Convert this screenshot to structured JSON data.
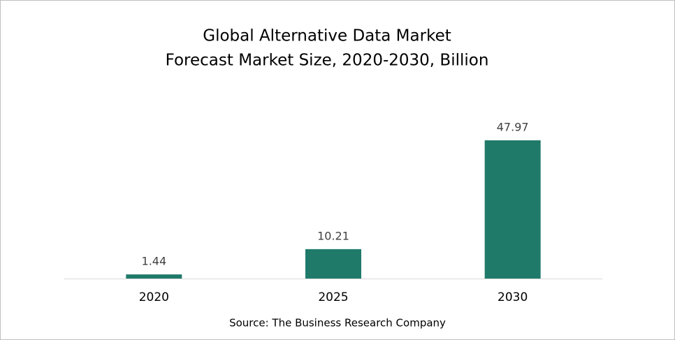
{
  "chart_data": {
    "type": "bar",
    "title": "Global Alternative Data Market",
    "subtitle": "Forecast Market Size, 2020-2030, Billion",
    "categories": [
      "2020",
      "2025",
      "2030"
    ],
    "values": [
      1.44,
      10.21,
      47.97
    ],
    "color": "#1f7a6a",
    "source": "Source: The Business Research Company"
  }
}
